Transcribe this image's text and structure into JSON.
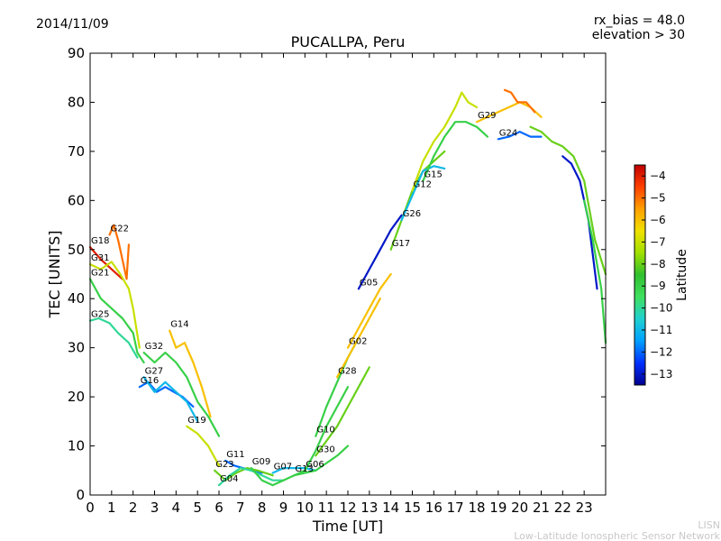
{
  "header": {
    "date": "2014/11/09",
    "rx_bias": "rx_bias = 48.0",
    "elevation": "elevation > 30"
  },
  "footer": {
    "line1": "LISN",
    "line2": "Low-Latitude Ionospheric Sensor Network"
  },
  "colorbar": {
    "label": "Latitude",
    "ticks": [
      -4,
      -5,
      -6,
      -7,
      -8,
      -9,
      -10,
      -11,
      -12,
      -13
    ],
    "range": [
      -13.5,
      -3.5
    ],
    "colors": [
      "#00008f",
      "#0030ff",
      "#00a0ff",
      "#20d0d0",
      "#40e060",
      "#30c030",
      "#a0e000",
      "#f0e000",
      "#ffa000",
      "#ff4000",
      "#c00000"
    ]
  },
  "chart_data": {
    "type": "line",
    "title": "PUCALLPA, Peru",
    "xlabel": "Time [UT]",
    "ylabel": "TEC [UNITS]",
    "xlim": [
      0,
      24
    ],
    "ylim": [
      0,
      90
    ],
    "xticks": [
      0,
      1,
      2,
      3,
      4,
      5,
      6,
      7,
      8,
      9,
      10,
      11,
      12,
      13,
      14,
      15,
      16,
      17,
      18,
      19,
      20,
      21,
      22,
      23
    ],
    "yticks": [
      0,
      10,
      20,
      30,
      40,
      50,
      60,
      70,
      80,
      90
    ],
    "series": [
      {
        "name": "G18",
        "lat": -4,
        "x": [
          0,
          0.5,
          1.0,
          1.5
        ],
        "y": [
          50.5,
          48,
          46,
          44
        ]
      },
      {
        "name": "G22",
        "lat": -5,
        "x": [
          0.9,
          1.1,
          1.3,
          1.5,
          1.7,
          1.8
        ],
        "y": [
          53,
          55,
          52,
          48,
          44,
          51
        ]
      },
      {
        "name": "G31",
        "lat": -7,
        "x": [
          0,
          0.5,
          1.0,
          1.4,
          1.8,
          2.0,
          2.3
        ],
        "y": [
          47,
          46,
          47.5,
          45,
          42,
          38,
          30
        ]
      },
      {
        "name": "G21",
        "lat": -9,
        "x": [
          0,
          0.5,
          1.0,
          1.5,
          2.0,
          2.2,
          2.5
        ],
        "y": [
          44,
          40,
          38,
          36,
          33,
          29,
          27
        ]
      },
      {
        "name": "G25",
        "lat": -10,
        "x": [
          0,
          0.4,
          0.9,
          1.3,
          1.8,
          2.2
        ],
        "y": [
          35.5,
          36,
          35,
          33,
          31,
          28
        ]
      },
      {
        "name": "G14",
        "lat": -6,
        "x": [
          3.7,
          4.0,
          4.4,
          4.8,
          5.2,
          5.6
        ],
        "y": [
          33.5,
          30,
          31,
          27,
          22,
          16
        ]
      },
      {
        "name": "G32",
        "lat": -9,
        "x": [
          2.5,
          3.0,
          3.5,
          4.0,
          4.5,
          5.0,
          5.5,
          6.0
        ],
        "y": [
          29,
          27,
          29,
          27,
          24,
          19,
          16,
          12
        ]
      },
      {
        "name": "G16",
        "lat": -12,
        "x": [
          2.3,
          2.7,
          3.1,
          3.5,
          3.9,
          4.3,
          4.8
        ],
        "y": [
          22,
          23,
          21,
          22,
          21,
          20,
          18
        ]
      },
      {
        "name": "G27",
        "lat": -11,
        "x": [
          2.5,
          3.0,
          3.5,
          4.0,
          4.5,
          5.0
        ],
        "y": [
          24,
          21,
          23,
          21,
          19,
          15
        ]
      },
      {
        "name": "G19",
        "lat": -7,
        "x": [
          4.5,
          5.0,
          5.5,
          6.0
        ],
        "y": [
          14,
          12.5,
          10,
          6
        ]
      },
      {
        "name": "G11",
        "lat": -12,
        "x": [
          6.3,
          6.7,
          7.1,
          7.5,
          8.0
        ],
        "y": [
          7,
          6,
          5.5,
          5,
          4.5
        ]
      },
      {
        "name": "G23",
        "lat": -8,
        "x": [
          5.8,
          6.3,
          6.8,
          7.3,
          7.8,
          8.5
        ],
        "y": [
          5,
          3,
          4.5,
          5.5,
          5,
          4
        ]
      },
      {
        "name": "G04",
        "lat": -10,
        "x": [
          6.0,
          6.5,
          7.0,
          7.5,
          8.0,
          8.5,
          9.0
        ],
        "y": [
          2,
          4,
          5.5,
          5,
          4,
          3,
          3
        ]
      },
      {
        "name": "G09",
        "lat": -9,
        "x": [
          7.5,
          8.0,
          8.5,
          9.0,
          9.5,
          10.0
        ],
        "y": [
          5.5,
          3,
          2,
          3,
          4,
          5
        ]
      },
      {
        "name": "G07",
        "lat": -11,
        "x": [
          8.5,
          9.0,
          9.5,
          10.0,
          10.5
        ],
        "y": [
          4.5,
          5.5,
          5.5,
          5.5,
          5
        ]
      },
      {
        "name": "G13",
        "lat": -9,
        "x": [
          9.5,
          10.0,
          10.5,
          11.0,
          11.5,
          12.0
        ],
        "y": [
          4,
          4.5,
          5,
          6.5,
          8,
          10
        ]
      },
      {
        "name": "G30",
        "lat": -8,
        "x": [
          10.5,
          11.0,
          11.5,
          12.0,
          12.5,
          13.0
        ],
        "y": [
          8,
          11,
          14,
          18,
          22,
          26
        ]
      },
      {
        "name": "G06",
        "lat": -9,
        "x": [
          10.0,
          10.5,
          11.0,
          11.5,
          12.0
        ],
        "y": [
          5,
          9,
          14,
          18,
          22
        ]
      },
      {
        "name": "G10",
        "lat": -9,
        "x": [
          10.5,
          11.0,
          11.5,
          12.0,
          12.5
        ],
        "y": [
          12,
          18,
          23,
          28,
          32
        ]
      },
      {
        "name": "G28",
        "lat": -6,
        "x": [
          11.5,
          12.0,
          12.5,
          13.0,
          13.5
        ],
        "y": [
          24,
          28,
          32,
          36,
          40
        ]
      },
      {
        "name": "G02",
        "lat": -6,
        "x": [
          12.0,
          12.5,
          13.0,
          13.5,
          14.0
        ],
        "y": [
          30,
          34,
          38,
          42,
          45
        ]
      },
      {
        "name": "G05",
        "lat": -13,
        "x": [
          12.5,
          13.0,
          13.5,
          14.0,
          14.5
        ],
        "y": [
          42,
          46,
          50,
          54,
          57
        ]
      },
      {
        "name": "G17",
        "lat": -8,
        "x": [
          14.0,
          14.5,
          15.0,
          15.5,
          16.0,
          16.5
        ],
        "y": [
          50,
          56,
          62,
          66,
          68,
          70
        ]
      },
      {
        "name": "G26",
        "lat": -11,
        "x": [
          14.5,
          15.0,
          15.5,
          16.0,
          16.5
        ],
        "y": [
          56,
          61,
          66,
          67,
          66.5
        ]
      },
      {
        "name": "G12",
        "lat": -7,
        "x": [
          15.0,
          15.5,
          16.0,
          16.5,
          17.0,
          17.3,
          17.6,
          18.0
        ],
        "y": [
          62,
          68,
          72,
          75,
          79,
          82,
          80,
          79
        ]
      },
      {
        "name": "G15",
        "lat": -9,
        "x": [
          15.5,
          16.0,
          16.5,
          17.0,
          17.5,
          18.0,
          18.5
        ],
        "y": [
          64,
          69,
          73,
          76,
          76,
          75,
          73
        ]
      },
      {
        "name": "G24",
        "lat": -12,
        "x": [
          19.0,
          19.5,
          20.0,
          20.5,
          21.0
        ],
        "y": [
          72.5,
          73,
          74,
          73,
          73
        ]
      },
      {
        "name": "G29",
        "lat": -6,
        "x": [
          18.0,
          18.5,
          19.0,
          19.5,
          20.0,
          20.5,
          21.0
        ],
        "y": [
          76,
          77,
          78,
          79,
          80,
          79,
          77
        ]
      },
      {
        "name": "",
        "lat": -5,
        "x": [
          19.3,
          19.6,
          19.9,
          20.3,
          20.7
        ],
        "y": [
          82.5,
          82,
          80,
          80,
          78
        ]
      },
      {
        "name": "",
        "lat": -8,
        "x": [
          20.5,
          21.0,
          21.5,
          22.0,
          22.5,
          23.0,
          23.5,
          24.0
        ],
        "y": [
          75,
          74,
          72,
          71,
          69,
          64,
          52,
          45
        ]
      },
      {
        "name": "",
        "lat": -13,
        "x": [
          22.0,
          22.4,
          22.8,
          23.2,
          23.6
        ],
        "y": [
          69,
          67.5,
          64,
          56,
          42
        ]
      },
      {
        "name": "",
        "lat": -9,
        "x": [
          23.0,
          23.4,
          23.8,
          24.0
        ],
        "y": [
          60,
          52,
          42,
          31
        ]
      }
    ]
  }
}
